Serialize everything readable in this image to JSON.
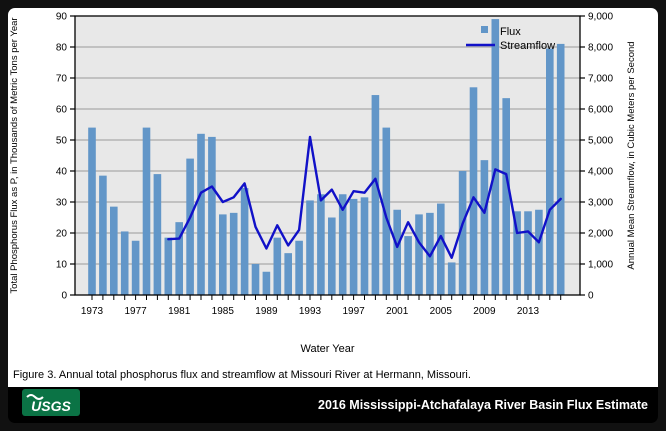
{
  "chart_data": {
    "type": "bar",
    "title": "",
    "xlabel": "Water Year",
    "ylabel_left": "Total Phosphorus Flux as P, in Thousands of Metric Tons per Year",
    "ylabel_right": "Annual Mean Streamflow, in Cubic Meters per Second",
    "ylim_left": [
      0,
      90
    ],
    "ylim_right": [
      0,
      9000
    ],
    "grid": true,
    "legend_position": "upper-right-inside",
    "x_labeled_ticks": [
      1973,
      1977,
      1981,
      1985,
      1989,
      1993,
      1997,
      2001,
      2005,
      2009,
      2013
    ],
    "years": [
      1973,
      1974,
      1975,
      1976,
      1977,
      1978,
      1979,
      1980,
      1981,
      1982,
      1983,
      1984,
      1985,
      1986,
      1987,
      1988,
      1989,
      1990,
      1991,
      1992,
      1993,
      1994,
      1995,
      1996,
      1997,
      1998,
      1999,
      2000,
      2001,
      2002,
      2003,
      2004,
      2005,
      2006,
      2007,
      2008,
      2009,
      2010,
      2011,
      2012,
      2013,
      2014,
      2015,
      2016
    ],
    "series": [
      {
        "name": "Flux",
        "type": "bar",
        "units": "thousands of metric tons per year",
        "values": [
          54,
          38.5,
          28.5,
          20.5,
          17.5,
          54,
          39,
          18.5,
          23.5,
          44,
          52,
          51,
          26,
          26.5,
          34.5,
          10,
          7.5,
          18.5,
          13.5,
          17.5,
          30.5,
          32.5,
          25,
          32.5,
          31,
          31.5,
          64.5,
          54,
          27.5,
          19,
          26,
          26.5,
          29.5,
          10.5,
          40,
          67,
          43.5,
          89,
          63.5,
          27,
          27,
          27.5,
          79.5,
          81
        ]
      },
      {
        "name": "Streamflow",
        "type": "line",
        "units": "cubic meters per second",
        "start_year": 1980,
        "values": [
          1800,
          1820,
          2500,
          3300,
          3500,
          3000,
          3150,
          3600,
          2200,
          1500,
          2250,
          1600,
          2100,
          5100,
          3050,
          3400,
          2750,
          3350,
          3300,
          3750,
          2500,
          1550,
          2350,
          1700,
          1250,
          1900,
          1200,
          2300,
          3150,
          2650,
          4050,
          3900,
          2000,
          2050,
          1700,
          2750,
          3100
        ]
      }
    ],
    "legend": [
      {
        "label": "Flux",
        "marker": "square"
      },
      {
        "label": "Streamflow",
        "marker": "line"
      }
    ],
    "colors": {
      "bar": "#6296C8",
      "line": "#1111C8",
      "plot_bg": "#E8E8E8",
      "grid": "#9A9A9A",
      "frame": "#000000"
    }
  },
  "caption": "Figure 3. Annual total phosphorus flux and streamflow at Missouri River at Hermann, Missouri.",
  "footer": {
    "logo_text": "USGS",
    "logo_color": "#0B7345",
    "title": "2016 Mississippi-Atchafalaya River Basin Flux Estimate"
  }
}
